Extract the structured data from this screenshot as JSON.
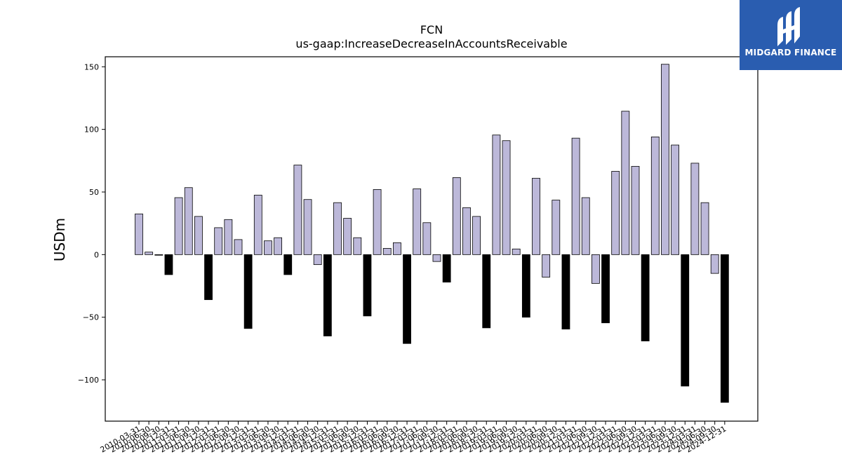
{
  "brand": {
    "name": "MIDGARD FINANCE",
    "logo_icon": "midgard-logo-icon",
    "bg_color": "#2a5db0"
  },
  "chart_data": {
    "type": "bar",
    "title": "FCN",
    "subtitle": "us-gaap:IncreaseDecreaseInAccountsReceivable",
    "xlabel": "",
    "ylabel": "USDm",
    "ylim": [
      -133,
      158
    ],
    "yticks": [
      -100,
      -50,
      0,
      50,
      100,
      150
    ],
    "grid": false,
    "colors": {
      "positive": "#bcb8d9",
      "annual": "#000000",
      "edge": "#000000"
    },
    "categories": [
      "2010-03-31",
      "2010-06-30",
      "2010-09-30",
      "2010-12-31",
      "2011-03-31",
      "2011-06-30",
      "2011-09-30",
      "2011-12-31",
      "2012-03-31",
      "2012-06-30",
      "2012-09-30",
      "2012-12-31",
      "2013-03-31",
      "2013-06-30",
      "2013-09-30",
      "2013-12-31",
      "2014-03-31",
      "2014-06-30",
      "2014-09-30",
      "2014-12-31",
      "2015-03-31",
      "2015-06-30",
      "2015-09-30",
      "2015-12-31",
      "2016-03-31",
      "2016-06-30",
      "2016-09-30",
      "2016-12-31",
      "2017-03-31",
      "2017-06-30",
      "2017-09-30",
      "2017-12-31",
      "2018-03-31",
      "2018-06-30",
      "2018-09-30",
      "2018-12-31",
      "2019-03-31",
      "2019-06-30",
      "2019-09-30",
      "2019-12-31",
      "2020-03-31",
      "2020-06-30",
      "2020-09-30",
      "2020-12-31",
      "2021-03-31",
      "2021-06-30",
      "2021-09-30",
      "2021-12-31",
      "2022-03-31",
      "2022-06-30",
      "2022-09-30",
      "2022-12-31",
      "2023-03-31",
      "2023-06-30",
      "2023-09-30",
      "2023-12-31",
      "2024-03-31",
      "2024-06-30",
      "2024-09-30",
      "2024-12-31"
    ],
    "values": [
      32.5,
      2.0,
      -0.5,
      -16,
      45.5,
      53.5,
      30.5,
      -36,
      21.5,
      28,
      12,
      -59,
      47.5,
      11,
      13.5,
      -16,
      71.5,
      44,
      -8,
      -65,
      41.5,
      29,
      13.5,
      -49,
      52,
      5,
      9.5,
      -71,
      52.5,
      25.5,
      -5.5,
      -22,
      61.5,
      37.5,
      30.5,
      -58.5,
      95.5,
      91,
      4.5,
      -50,
      61,
      -18,
      43.5,
      -59.5,
      93,
      45.5,
      -23,
      -54.5,
      66.5,
      114.5,
      70.5,
      -69,
      94,
      152,
      87.5,
      -105,
      73,
      41.5,
      -15,
      -118
    ]
  }
}
